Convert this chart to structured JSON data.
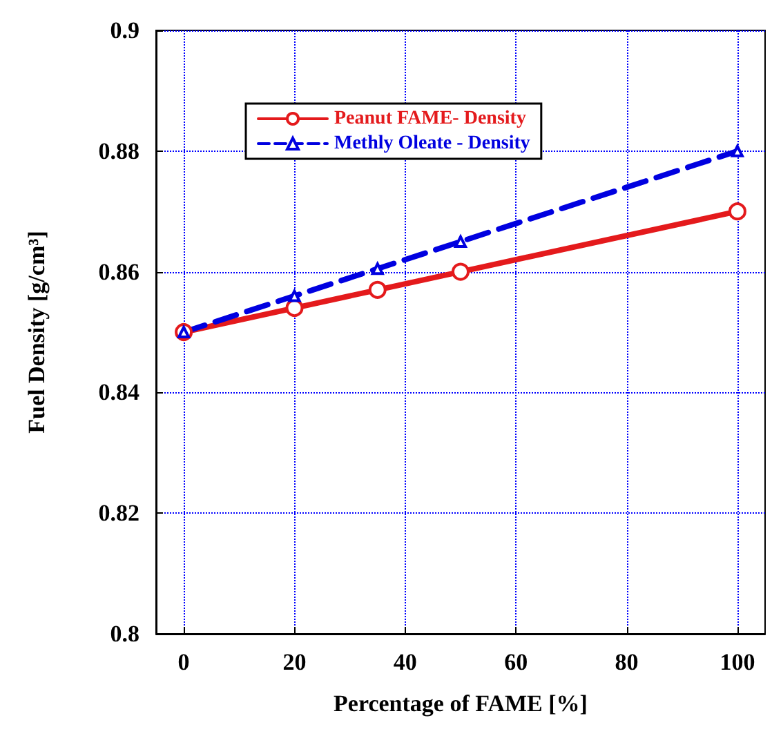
{
  "chart_data": {
    "type": "line",
    "xlabel": "Percentage of FAME [%]",
    "ylabel": "Fuel Density [g/cm³]",
    "x": [
      0,
      20,
      35,
      50,
      100
    ],
    "series": [
      {
        "name": "Peanut FAME- Density",
        "color": "#e41a1c",
        "values": [
          0.85,
          0.854,
          0.857,
          0.86,
          0.87
        ],
        "marker": "circle",
        "line_style": "solid"
      },
      {
        "name": "Methly Oleate - Density",
        "color": "#0000e0",
        "values": [
          0.85,
          0.856,
          0.8605,
          0.865,
          0.88
        ],
        "marker": "triangle",
        "line_style": "dashed"
      }
    ],
    "xlim": [
      -5,
      105
    ],
    "xticks": [
      0,
      20,
      40,
      60,
      80,
      100
    ],
    "ylim": [
      0.8,
      0.9
    ],
    "yticks": [
      0.8,
      0.82,
      0.84,
      0.86,
      0.88,
      0.9
    ],
    "grid": true,
    "legend": "top"
  }
}
